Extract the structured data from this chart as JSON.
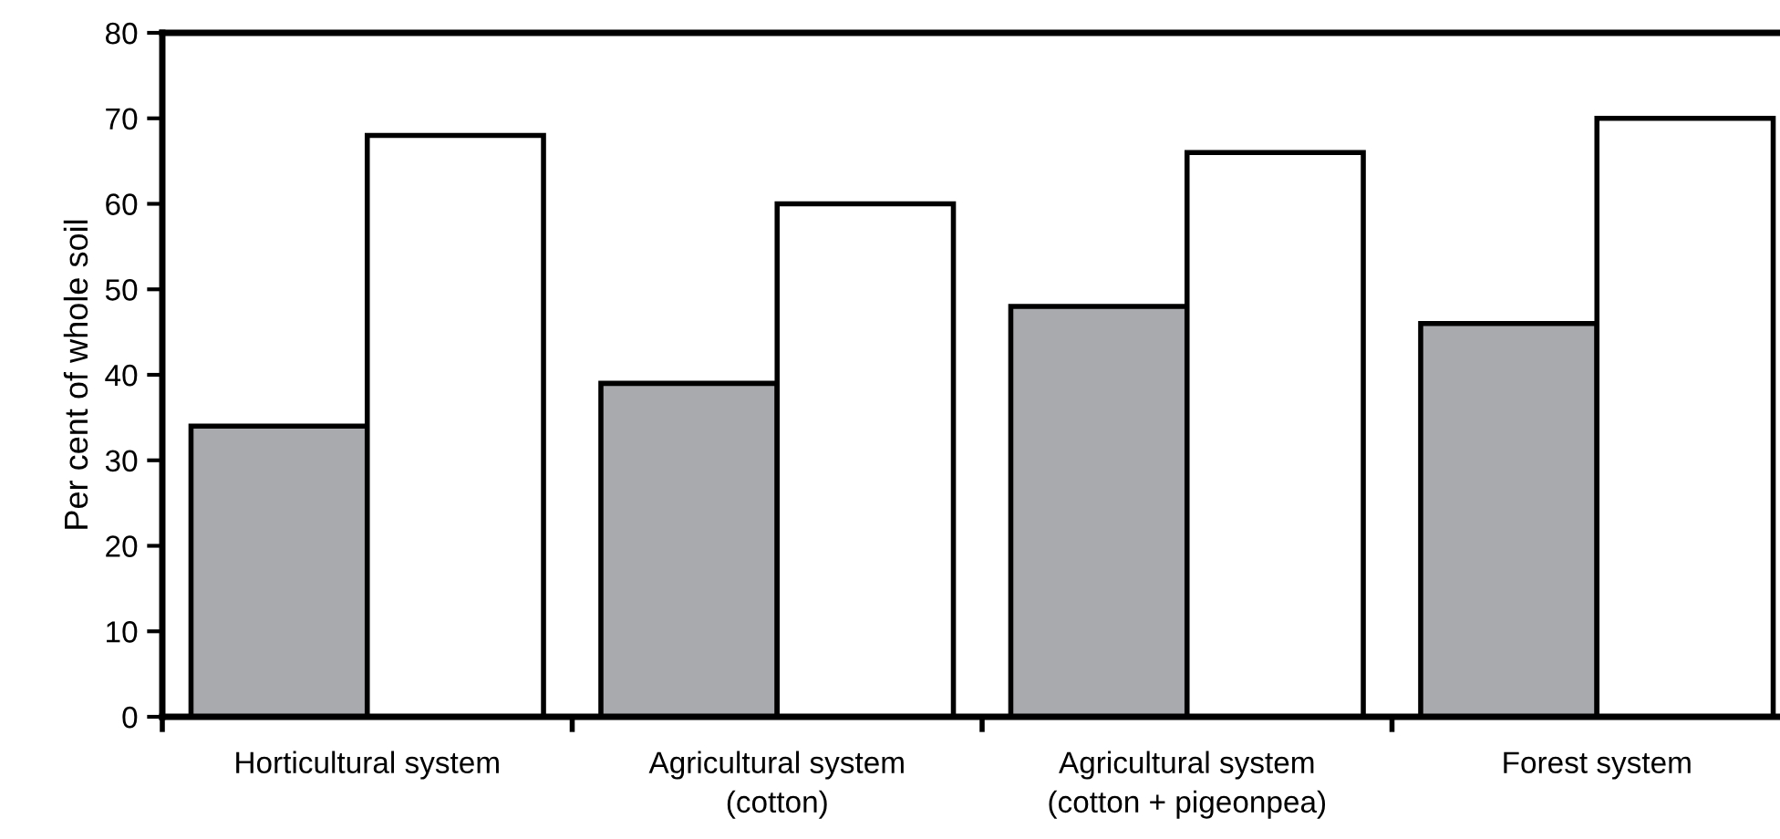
{
  "chart_data": {
    "type": "bar",
    "ylabel": "Per cent of whole soil",
    "categories": [
      "Horticultural system",
      "Agricultural system\n(cotton)",
      "Agricultural system\n(cotton + pigeonpea)",
      "Forest system"
    ],
    "series": [
      {
        "color": "#a9aaad",
        "values": [
          34,
          39,
          48,
          46
        ]
      },
      {
        "color": "#ffffff",
        "values": [
          68,
          60,
          66,
          70
        ]
      }
    ],
    "ylim": [
      0,
      80
    ],
    "yticks": [
      0,
      10,
      20,
      30,
      40,
      50,
      60,
      70,
      80
    ],
    "grid": false,
    "legend": false
  }
}
